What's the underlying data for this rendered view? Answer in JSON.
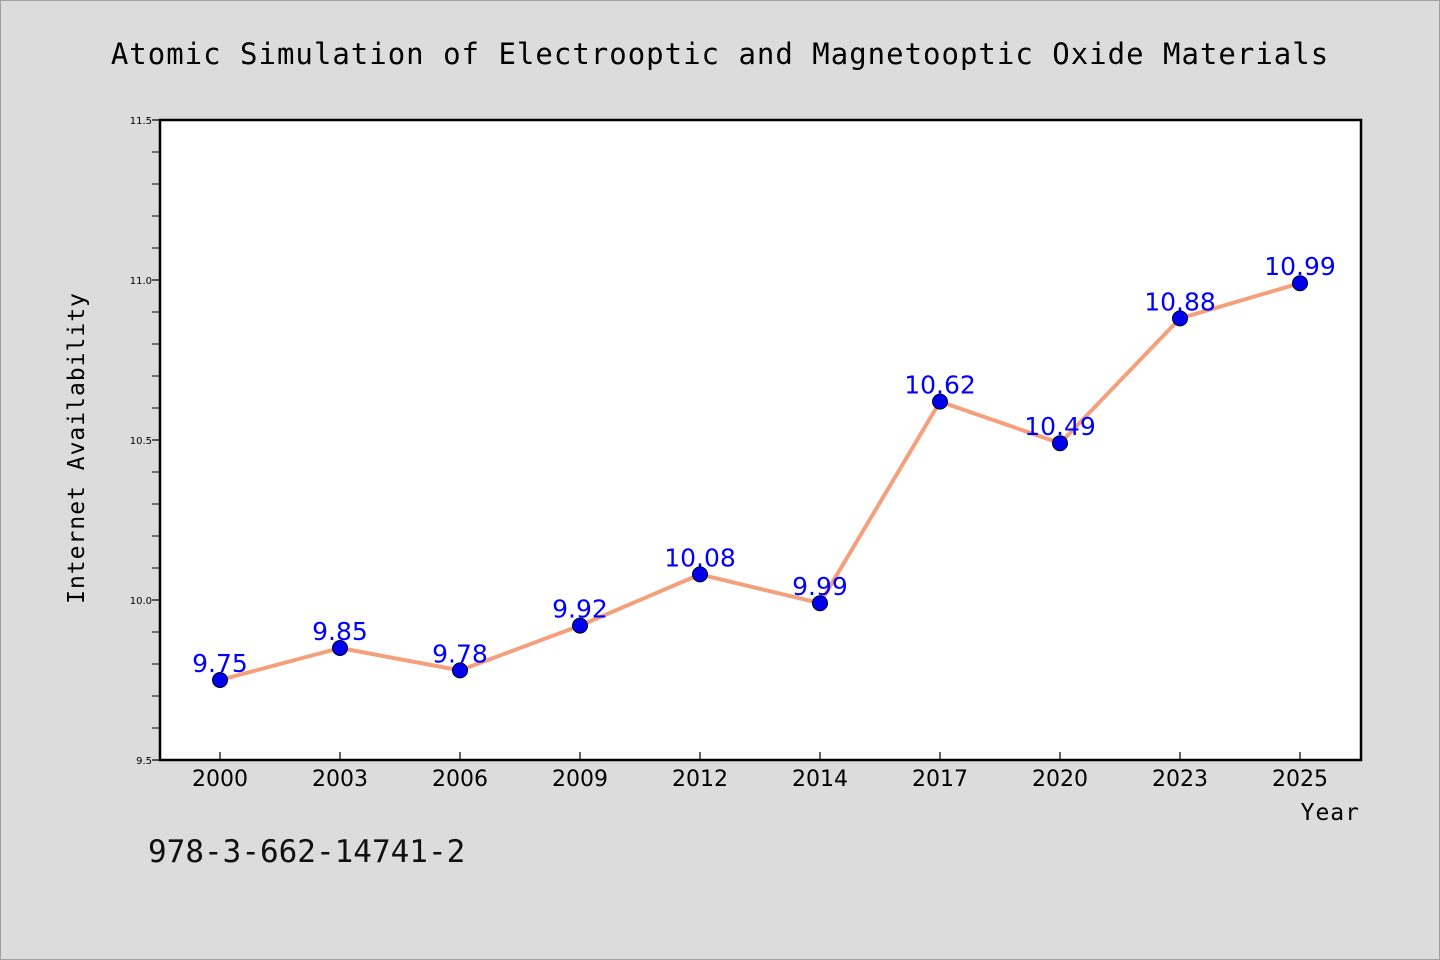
{
  "chart_data": {
    "type": "line",
    "title": "Atomic Simulation of Electrooptic and Magnetooptic Oxide Materials",
    "xlabel": "Year",
    "ylabel": "Internet Availability",
    "categories": [
      "2000",
      "2003",
      "2006",
      "2009",
      "2012",
      "2014",
      "2017",
      "2020",
      "2023",
      "2025"
    ],
    "series": [
      {
        "values": [
          9.75,
          9.85,
          9.78,
          9.92,
          10.08,
          9.99,
          10.62,
          10.49,
          10.88,
          10.99
        ]
      }
    ],
    "data_labels": [
      "9.75",
      "9.85",
      "9.78",
      "9.92",
      "10.08",
      "9.99",
      "10.62",
      "10.49",
      "10.88",
      "10.99"
    ],
    "ylim": [
      9.5,
      11.5
    ],
    "yticks": [
      "9.5",
      "10.0",
      "10.5",
      "11.0",
      "11.5"
    ],
    "grid": false,
    "legend": "none",
    "colors": {
      "line": "#f4a07c",
      "marker": "#0000ee",
      "label": "#0000ff",
      "plot_background": "#ffffff",
      "page_background": "#dcdcdc"
    }
  },
  "footer": {
    "isbn": "978-3-662-14741-2"
  }
}
